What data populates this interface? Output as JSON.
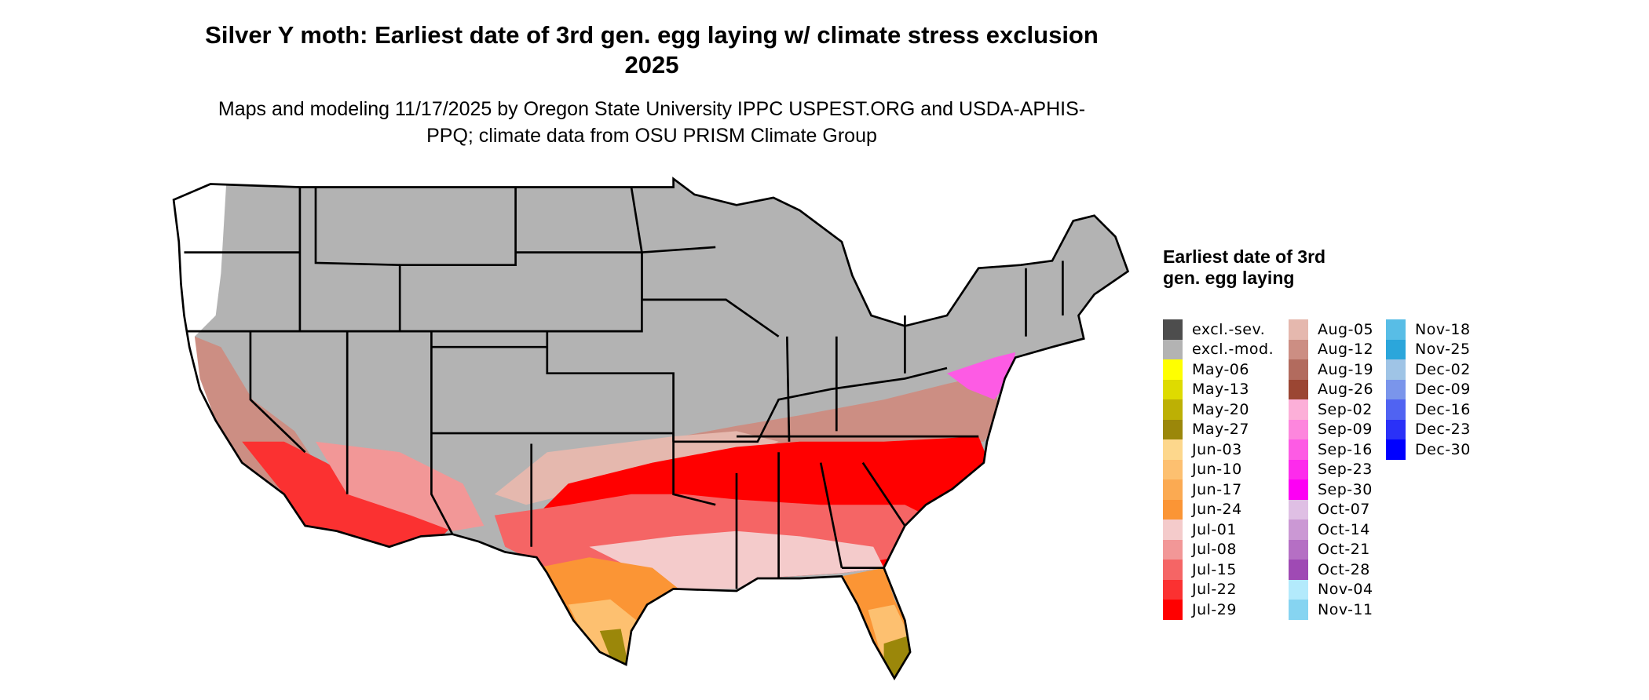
{
  "title": "Silver Y moth: Earliest date of 3rd gen. egg laying w/ climate stress exclusion 2025",
  "subtitle": "Maps and modeling 11/17/2025 by Oregon State University IPPC USPEST.ORG and USDA-APHIS-PPQ; climate data from OSU PRISM Climate Group",
  "legend": {
    "title": "Earliest date of 3rd gen. egg laying",
    "items": [
      {
        "label": "excl.-sev.",
        "color": "#4d4d4d"
      },
      {
        "label": "excl.-mod.",
        "color": "#b3b3b3"
      },
      {
        "label": "May-06",
        "color": "#ffff00"
      },
      {
        "label": "May-13",
        "color": "#dedb00"
      },
      {
        "label": "May-20",
        "color": "#bdb004"
      },
      {
        "label": "May-27",
        "color": "#9b870a"
      },
      {
        "label": "Jun-03",
        "color": "#fdd78c"
      },
      {
        "label": "Jun-10",
        "color": "#fdc070"
      },
      {
        "label": "Jun-17",
        "color": "#fbaa52"
      },
      {
        "label": "Jun-24",
        "color": "#fb9535"
      },
      {
        "label": "Jul-01",
        "color": "#f4cbcb"
      },
      {
        "label": "Jul-08",
        "color": "#f29797"
      },
      {
        "label": "Jul-15",
        "color": "#f56565"
      },
      {
        "label": "Jul-22",
        "color": "#fb3131"
      },
      {
        "label": "Jul-29",
        "color": "#ff0000"
      },
      {
        "label": "Aug-05",
        "color": "#e5b8ae"
      },
      {
        "label": "Aug-12",
        "color": "#cc8e83"
      },
      {
        "label": "Aug-19",
        "color": "#b26b5e"
      },
      {
        "label": "Aug-26",
        "color": "#9b4633"
      },
      {
        "label": "Sep-02",
        "color": "#fcafd8"
      },
      {
        "label": "Sep-09",
        "color": "#fd86dd"
      },
      {
        "label": "Sep-16",
        "color": "#fd5be4"
      },
      {
        "label": "Sep-23",
        "color": "#fd2bec"
      },
      {
        "label": "Sep-30",
        "color": "#fd00f4"
      },
      {
        "label": "Oct-07",
        "color": "#dfbfe4"
      },
      {
        "label": "Oct-14",
        "color": "#cb98d4"
      },
      {
        "label": "Oct-21",
        "color": "#b56fc4"
      },
      {
        "label": "Oct-28",
        "color": "#9f4ab4"
      },
      {
        "label": "Nov-04",
        "color": "#b3eafc"
      },
      {
        "label": "Nov-11",
        "color": "#86d4f1"
      },
      {
        "label": "Nov-18",
        "color": "#58bde6"
      },
      {
        "label": "Nov-25",
        "color": "#2ba6db"
      },
      {
        "label": "Dec-02",
        "color": "#9fc4e6"
      },
      {
        "label": "Dec-09",
        "color": "#7a95eb"
      },
      {
        "label": "Dec-16",
        "color": "#5063f2"
      },
      {
        "label": "Dec-23",
        "color": "#2a31f8"
      },
      {
        "label": "Dec-30",
        "color": "#0000ff"
      }
    ]
  }
}
